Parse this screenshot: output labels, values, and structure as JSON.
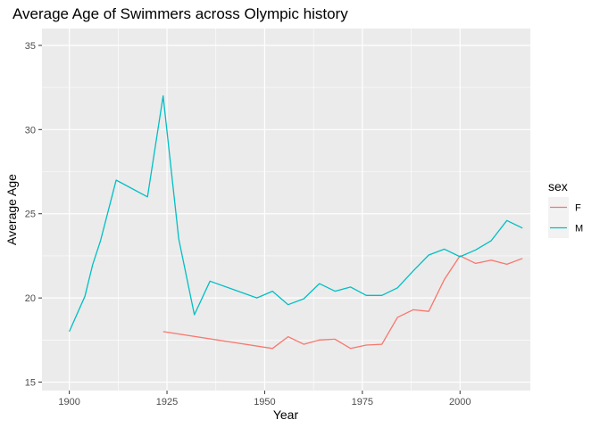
{
  "chart_data": {
    "type": "line",
    "title": "Average Age of Swimmers across Olympic history",
    "xlabel": "Year",
    "ylabel": "Average Age",
    "xlim": [
      1893,
      2018
    ],
    "ylim": [
      14.5,
      36
    ],
    "xticks": [
      1900,
      1925,
      1950,
      1975,
      2000
    ],
    "yticks": [
      15,
      20,
      25,
      30,
      35
    ],
    "grid": true,
    "legend": {
      "title": "sex",
      "position": "right"
    },
    "series": [
      {
        "name": "F",
        "color": "#F8766D",
        "points": [
          [
            1924,
            18.0
          ],
          [
            1952,
            17.0
          ],
          [
            1956,
            17.7
          ],
          [
            1960,
            17.25
          ],
          [
            1964,
            17.5
          ],
          [
            1968,
            17.55
          ],
          [
            1972,
            17.0
          ],
          [
            1976,
            17.2
          ],
          [
            1980,
            17.25
          ],
          [
            1984,
            18.85
          ],
          [
            1988,
            19.3
          ],
          [
            1992,
            19.2
          ],
          [
            1996,
            21.1
          ],
          [
            2000,
            22.5
          ],
          [
            2004,
            22.05
          ],
          [
            2008,
            22.25
          ],
          [
            2012,
            22.0
          ],
          [
            2016,
            22.35
          ]
        ]
      },
      {
        "name": "M",
        "color": "#00BFC4",
        "points": [
          [
            1900,
            18.0
          ],
          [
            1904,
            20.1
          ],
          [
            1906,
            22.0
          ],
          [
            1908,
            23.4
          ],
          [
            1912,
            27.0
          ],
          [
            1920,
            26.0
          ],
          [
            1924,
            32.0
          ],
          [
            1928,
            23.5
          ],
          [
            1932,
            19.0
          ],
          [
            1936,
            21.0
          ],
          [
            1948,
            20.0
          ],
          [
            1952,
            20.4
          ],
          [
            1956,
            19.6
          ],
          [
            1960,
            19.95
          ],
          [
            1964,
            20.85
          ],
          [
            1968,
            20.4
          ],
          [
            1972,
            20.65
          ],
          [
            1976,
            20.15
          ],
          [
            1980,
            20.15
          ],
          [
            1984,
            20.6
          ],
          [
            1988,
            21.6
          ],
          [
            1992,
            22.55
          ],
          [
            1996,
            22.9
          ],
          [
            2000,
            22.45
          ],
          [
            2004,
            22.85
          ],
          [
            2008,
            23.4
          ],
          [
            2012,
            24.6
          ],
          [
            2016,
            24.15
          ]
        ]
      }
    ]
  }
}
